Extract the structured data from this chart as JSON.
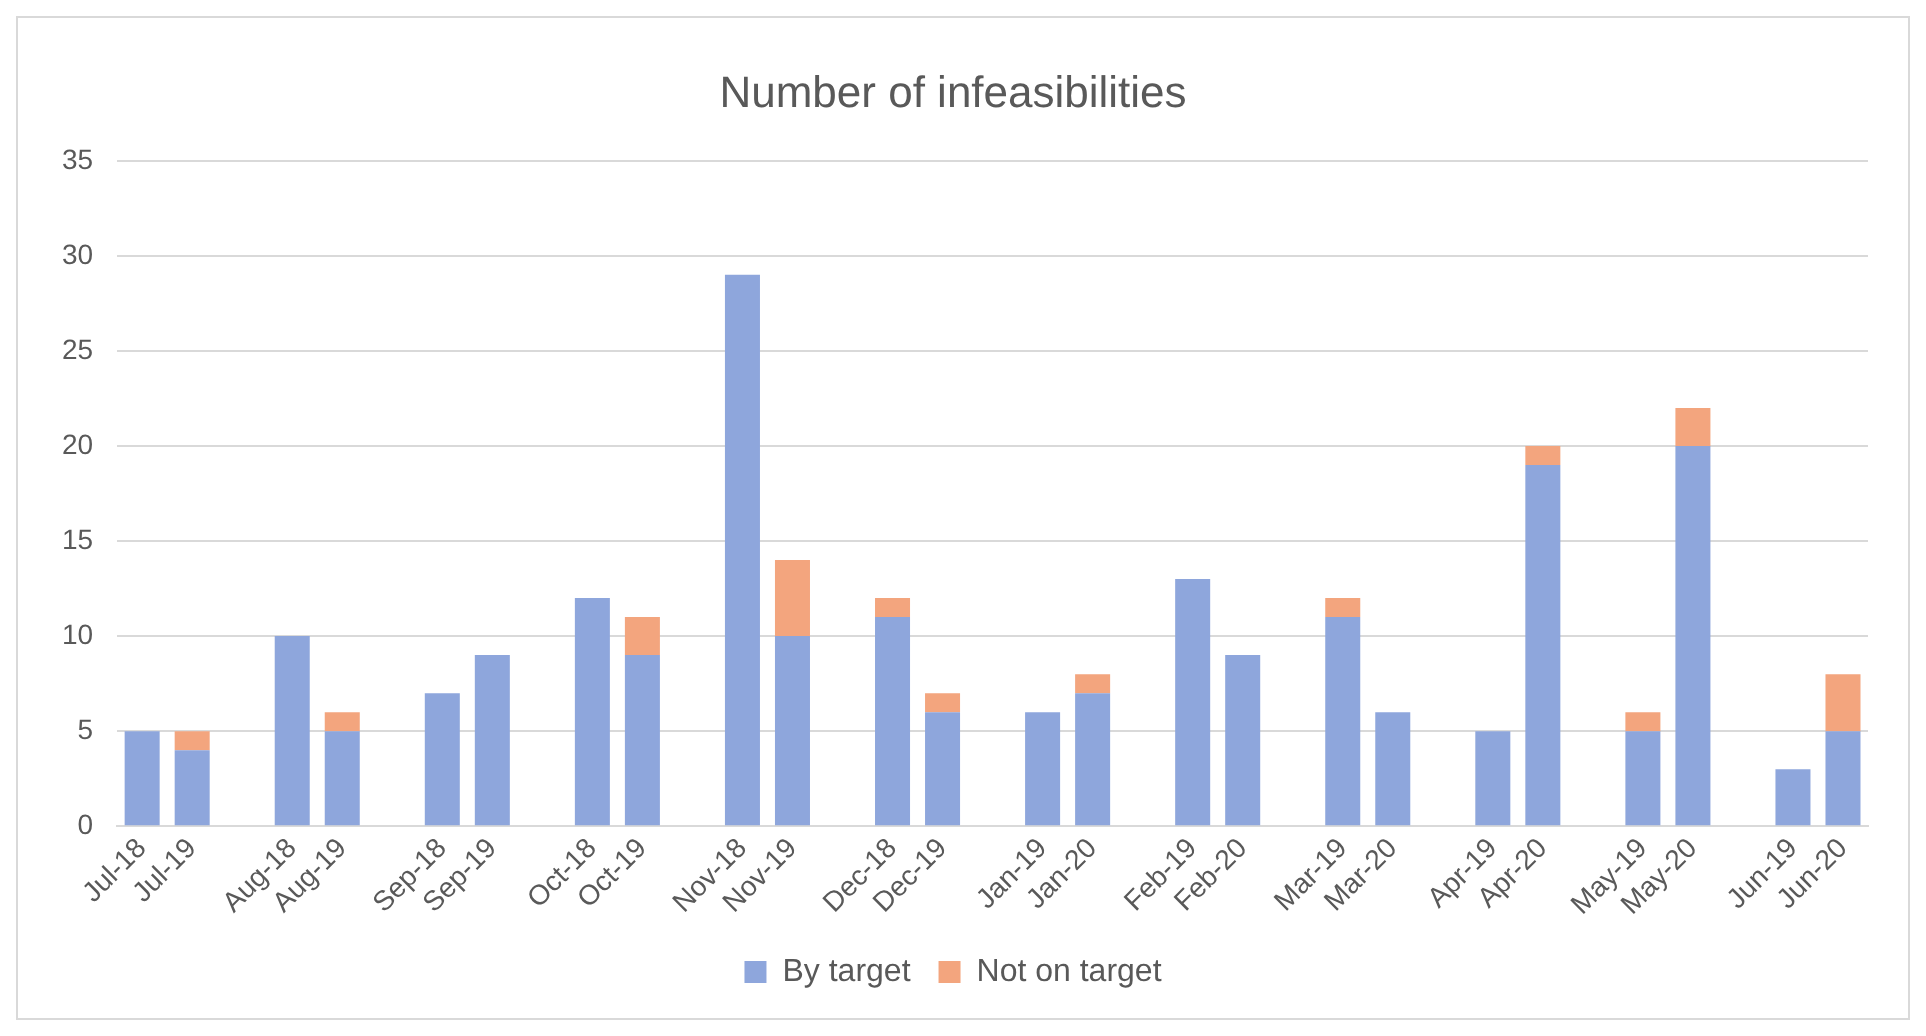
{
  "chart_data": {
    "type": "bar",
    "title": "Number of infeasibilities",
    "stacked": true,
    "categories": [
      "Jul-18",
      "Jul-19",
      null,
      "Aug-18",
      "Aug-19",
      null,
      "Sep-18",
      "Sep-19",
      null,
      "Oct-18",
      "Oct-19",
      null,
      "Nov-18",
      "Nov-19",
      null,
      "Dec-18",
      "Dec-19",
      null,
      "Jan-19",
      "Jan-20",
      null,
      "Feb-19",
      "Feb-20",
      null,
      "Mar-19",
      "Mar-20",
      null,
      "Apr-19",
      "Apr-20",
      null,
      "May-19",
      "May-20",
      null,
      "Jun-19",
      "Jun-20"
    ],
    "series": [
      {
        "name": "By target",
        "color": "#8ea6dc",
        "values": [
          5,
          4,
          null,
          10,
          5,
          null,
          7,
          9,
          null,
          12,
          9,
          null,
          29,
          10,
          null,
          11,
          6,
          null,
          6,
          7,
          null,
          13,
          9,
          null,
          11,
          6,
          null,
          5,
          19,
          null,
          5,
          20,
          null,
          3,
          5
        ]
      },
      {
        "name": "Not on target",
        "color": "#f3a57e",
        "values": [
          0,
          1,
          null,
          0,
          1,
          null,
          0,
          0,
          null,
          0,
          2,
          null,
          0,
          4,
          null,
          1,
          1,
          null,
          0,
          1,
          null,
          0,
          0,
          null,
          1,
          0,
          null,
          0,
          1,
          null,
          1,
          2,
          null,
          0,
          3
        ]
      }
    ],
    "ylim": [
      0,
      35
    ],
    "yticks": [
      0,
      5,
      10,
      15,
      20,
      25,
      30,
      35
    ],
    "grid": "y",
    "legend": "bottom"
  }
}
